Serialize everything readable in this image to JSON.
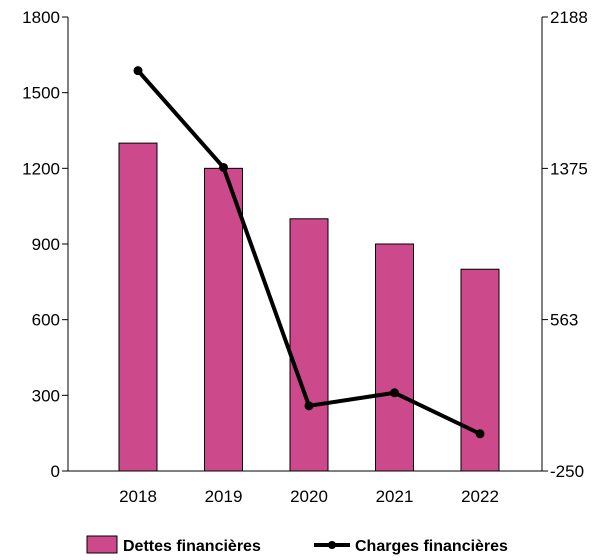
{
  "chart_data": {
    "type": "bar",
    "categories": [
      "2018",
      "2019",
      "2020",
      "2021",
      "2022"
    ],
    "series": [
      {
        "name": "Dettes financières",
        "type": "bar",
        "axis": "left",
        "color": "#cc4a8c",
        "values": [
          1300,
          1200,
          1000,
          900,
          800
        ]
      },
      {
        "name": "Charges financières",
        "type": "line",
        "axis": "right",
        "color": "#000000",
        "values": [
          1900,
          1380,
          100,
          170,
          -50
        ]
      }
    ],
    "y_left": {
      "ylim": [
        0,
        1800
      ],
      "ticks": [
        "0",
        "300",
        "600",
        "900",
        "1200",
        "1500",
        "1800"
      ]
    },
    "y_right": {
      "ylim": [
        -250,
        2188
      ],
      "ticks": [
        "-250",
        "563",
        "1375",
        "2188"
      ]
    },
    "grid": false,
    "legend_position": "bottom"
  }
}
